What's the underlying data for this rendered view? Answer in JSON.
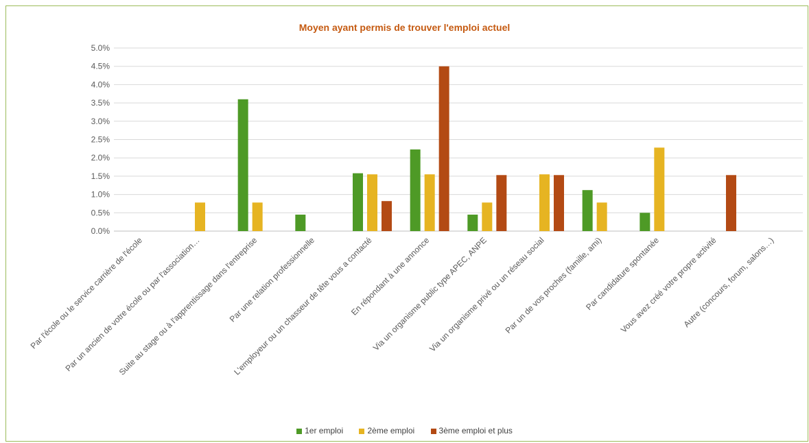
{
  "chart_data": {
    "type": "bar",
    "title": "Moyen ayant permis de trouver l'emploi actuel",
    "xlabel": "",
    "ylabel": "",
    "ylim": [
      0,
      0.05
    ],
    "yticks": [
      "0.0%",
      "0.5%",
      "1.0%",
      "1.5%",
      "2.0%",
      "2.5%",
      "3.0%",
      "3.5%",
      "4.0%",
      "4.5%",
      "5.0%"
    ],
    "grid": true,
    "legend_position": "bottom",
    "categories": [
      "Par l'école ou le service carrière de l'école",
      "Par un ancien de votre école ou par l'association…",
      "Suite au stage ou à l'apprentissage dans l'entreprise",
      "Par une relation professionnelle",
      "L'employeur ou un chasseur de tête vous a contacté",
      "En répondant à une annonce",
      "Via un organisme public type APEC, ANPE",
      "Via un organisme privé ou un réseau social",
      "Par un de vos proches (famille, ami)",
      "Par candidature spontanée",
      "Vous avez créé votre propre activité",
      "Autre (concours, forum, salons…)"
    ],
    "series": [
      {
        "name": "1er emploi",
        "color": "#4e9a26",
        "values": [
          0,
          0,
          0.036,
          0.0045,
          0.0158,
          0.0223,
          0.0045,
          0,
          0.0112,
          0.005,
          0,
          0
        ]
      },
      {
        "name": "2ème emploi",
        "color": "#e6b422",
        "values": [
          0,
          0.0078,
          0.0078,
          0,
          0.0155,
          0.0155,
          0.0078,
          0.0155,
          0.0078,
          0.0228,
          0,
          0
        ]
      },
      {
        "name": "3ème emploi et plus",
        "color": "#b34a14",
        "values": [
          0,
          0,
          0,
          0,
          0.0082,
          0.045,
          0.0153,
          0.0153,
          0,
          0,
          0.0153,
          0
        ]
      }
    ]
  }
}
